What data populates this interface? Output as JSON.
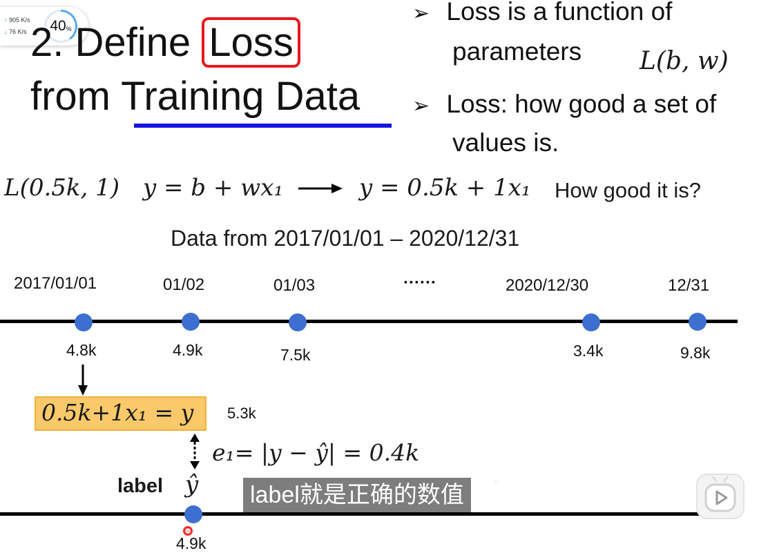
{
  "net_widget": {
    "up_speed": "905 K/s",
    "down_speed": "76  K/s",
    "percent": "40",
    "percent_unit": "%"
  },
  "title": {
    "line1_prefix": "2. Define",
    "line1_boxed": "Loss",
    "line2": "from Training Data"
  },
  "bullets": [
    {
      "line1": "Loss is a function of",
      "line2": "parameters"
    },
    {
      "line1": "Loss: how good a set of",
      "line2": "values is."
    }
  ],
  "loss_formula": "L(b, w)",
  "example": {
    "params": "L(0.5k, 1)",
    "model": "y = b + wx₁",
    "instance": "y = 0.5k + 1x₁",
    "question": "How good it is?"
  },
  "data_range": "Data from 2017/01/01 – 2020/12/31",
  "timeline": {
    "dates": [
      "2017/01/01",
      "01/02",
      "01/03",
      "······",
      "2020/12/30",
      "12/31"
    ],
    "values": [
      "4.8k",
      "4.9k",
      "7.5k",
      "3.4k",
      "9.8k"
    ]
  },
  "prediction": {
    "equation": "0.5k+1x₁ = y",
    "result": "5.3k"
  },
  "error": {
    "equation": "e₁= |y − ŷ| = 0.4k"
  },
  "label": {
    "text": "label",
    "symbol": "ŷ",
    "value": "4.9k"
  },
  "subtitle": "label就是正确的数值",
  "subtitle_badge": "AI",
  "colors": {
    "loss_box": "#e8171b",
    "underline": "#1515e0",
    "dot": "#3d6fd0",
    "highlight": "#fbc969"
  }
}
